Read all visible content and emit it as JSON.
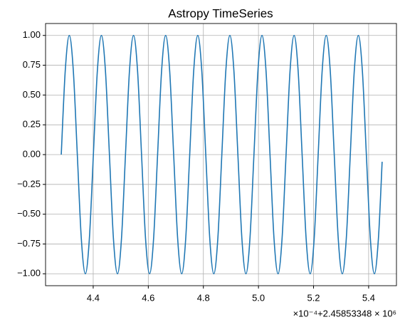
{
  "chart_data": {
    "type": "line",
    "title": "Astropy TimeSeries",
    "x_offset_label": "×10⁻⁴+2.45853348 × 10⁶",
    "x": [
      4.284,
      4.2986,
      4.3132,
      4.3277,
      4.3423,
      4.3569,
      4.3715,
      4.386,
      4.4006,
      4.4152,
      4.4298,
      4.4443,
      4.4589,
      4.4735,
      4.4881,
      4.5026,
      4.5172,
      4.5318,
      4.5464,
      4.5609,
      4.5755,
      4.5901,
      4.6047,
      4.6192,
      4.6338,
      4.6484,
      4.663,
      4.6775,
      4.6921,
      4.7067,
      4.7213,
      4.7358,
      4.7504,
      4.765,
      4.7796,
      4.7941,
      4.8087,
      4.8233,
      4.8379,
      4.8524,
      4.867,
      4.8816,
      4.8962,
      4.9107,
      4.9253,
      4.9399,
      4.9545,
      4.969,
      4.9836,
      4.9982,
      5.0128,
      5.0273,
      5.0419,
      5.0565,
      5.0711,
      5.0856,
      5.1002,
      5.1148,
      5.1294,
      5.1439,
      5.1585,
      5.1731,
      5.1877,
      5.2022,
      5.2168,
      5.2314,
      5.246,
      5.2605,
      5.2751,
      5.2897,
      5.3043,
      5.3188,
      5.3334,
      5.348,
      5.3626,
      5.3771,
      5.3917,
      5.4063,
      5.4209,
      5.4354,
      5.449
    ],
    "series": [
      {
        "color": "#1f77b4",
        "values": [
          0,
          0.707,
          1,
          0.707,
          0,
          -0.707,
          -1,
          -0.707,
          0,
          0.707,
          1,
          0.707,
          0,
          -0.707,
          -1,
          -0.707,
          0,
          0.707,
          1,
          0.707,
          0,
          -0.707,
          -1,
          -0.707,
          0,
          0.707,
          1,
          0.707,
          0,
          -0.707,
          -1,
          -0.707,
          0,
          0.707,
          1,
          0.707,
          0,
          -0.707,
          -1,
          -0.707,
          0,
          0.707,
          1,
          0.707,
          0,
          -0.707,
          -1,
          -0.707,
          0,
          0.707,
          1,
          0.707,
          0,
          -0.707,
          -1,
          -0.707,
          0,
          0.707,
          1,
          0.707,
          0,
          -0.707,
          -1,
          -0.707,
          0,
          0.707,
          1,
          0.707,
          0,
          -0.707,
          -1,
          -0.707,
          0,
          0.707,
          1,
          0.707,
          0,
          -0.707,
          -1,
          -0.707,
          -0.06
        ]
      }
    ],
    "xlim": [
      4.227,
      5.501
    ],
    "xticks": [
      {
        "value": 4.4,
        "label": "4.4"
      },
      {
        "value": 4.6,
        "label": "4.6"
      },
      {
        "value": 4.8,
        "label": "4.8"
      },
      {
        "value": 5.0,
        "label": "5.0"
      },
      {
        "value": 5.2,
        "label": "5.2"
      },
      {
        "value": 5.4,
        "label": "5.4"
      }
    ],
    "ylim": [
      -1.1,
      1.1
    ],
    "yticks": [
      {
        "value": -1,
        "label": "−1.00"
      },
      {
        "value": -0.75,
        "label": "−0.75"
      },
      {
        "value": -0.5,
        "label": "−0.50"
      },
      {
        "value": -0.25,
        "label": "−0.25"
      },
      {
        "value": 0,
        "label": "0.00"
      },
      {
        "value": 0.25,
        "label": "0.25"
      },
      {
        "value": 0.5,
        "label": "0.50"
      },
      {
        "value": 0.75,
        "label": "0.75"
      },
      {
        "value": 1,
        "label": "1.00"
      }
    ],
    "grid": true
  }
}
